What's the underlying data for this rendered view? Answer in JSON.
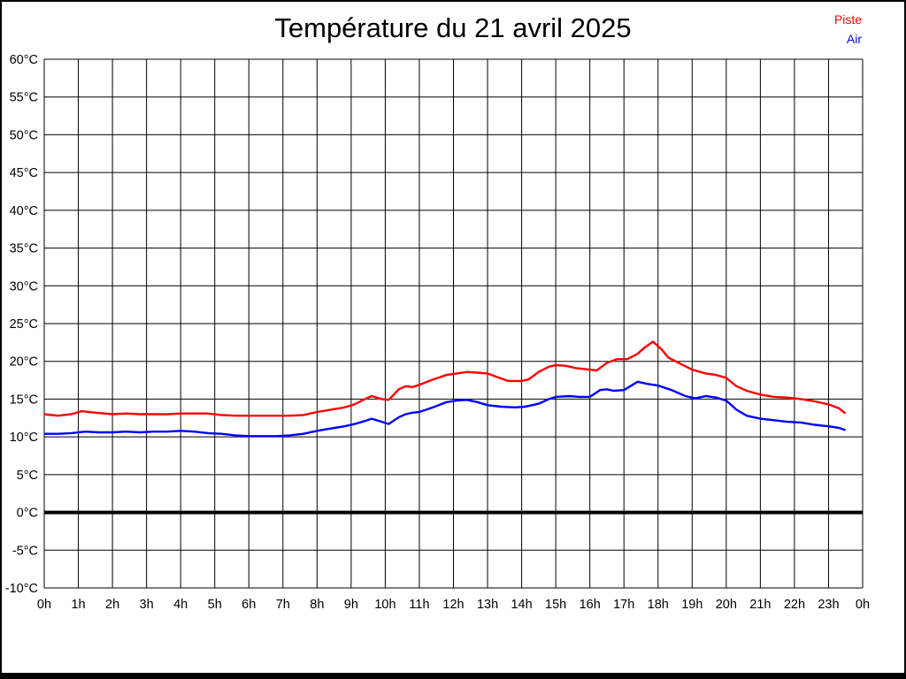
{
  "title": "Température du 21 avril 2025",
  "legend": {
    "piste": {
      "label": "Piste",
      "color": "#ff0000"
    },
    "air": {
      "label": "Air",
      "color": "#0000ff"
    }
  },
  "frame": {
    "background": "#ffffff",
    "border_color": "#000000"
  },
  "chart_data": {
    "type": "line",
    "title": "Température du 21 avril 2025",
    "grid": true,
    "grid_color": "#000000",
    "background": "#ffffff",
    "legend_position": "top-right",
    "zero_line_bold": true,
    "x_axis": {
      "unit": "h",
      "min": 0,
      "max": 24,
      "tick_values": [
        0,
        1,
        2,
        3,
        4,
        5,
        6,
        7,
        8,
        9,
        10,
        11,
        12,
        13,
        14,
        15,
        16,
        17,
        18,
        19,
        20,
        21,
        22,
        23,
        24
      ],
      "tick_labels": [
        "0h",
        "1h",
        "2h",
        "3h",
        "4h",
        "5h",
        "6h",
        "7h",
        "8h",
        "9h",
        "10h",
        "11h",
        "12h",
        "13h",
        "14h",
        "15h",
        "16h",
        "17h",
        "18h",
        "19h",
        "20h",
        "21h",
        "22h",
        "23h",
        "0h"
      ]
    },
    "y_axis": {
      "unit": "°C",
      "min": -10,
      "max": 60,
      "tick_values": [
        60,
        55,
        50,
        45,
        40,
        35,
        30,
        25,
        20,
        15,
        10,
        5,
        0,
        -5,
        -10
      ],
      "tick_labels": [
        "60°C",
        "55°C",
        "50°C",
        "45°C",
        "40°C",
        "35°C",
        "30°C",
        "25°C",
        "20°C",
        "15°C",
        "10°C",
        "5°C",
        "0°C",
        "-5°C",
        "-10°C"
      ]
    },
    "series": [
      {
        "name": "Piste",
        "color": "#ff0000",
        "points": [
          [
            0.0,
            13.0
          ],
          [
            0.4,
            12.8
          ],
          [
            0.8,
            13.0
          ],
          [
            1.1,
            13.4
          ],
          [
            1.5,
            13.2
          ],
          [
            2.0,
            13.0
          ],
          [
            2.4,
            13.1
          ],
          [
            2.8,
            13.0
          ],
          [
            3.2,
            13.0
          ],
          [
            3.6,
            13.0
          ],
          [
            4.0,
            13.1
          ],
          [
            4.4,
            13.1
          ],
          [
            4.8,
            13.1
          ],
          [
            5.2,
            12.9
          ],
          [
            5.6,
            12.8
          ],
          [
            6.0,
            12.8
          ],
          [
            6.4,
            12.8
          ],
          [
            6.8,
            12.8
          ],
          [
            7.2,
            12.8
          ],
          [
            7.6,
            12.9
          ],
          [
            8.0,
            13.3
          ],
          [
            8.4,
            13.6
          ],
          [
            8.8,
            13.9
          ],
          [
            9.1,
            14.3
          ],
          [
            9.4,
            15.0
          ],
          [
            9.6,
            15.4
          ],
          [
            9.9,
            15.0
          ],
          [
            10.1,
            14.9
          ],
          [
            10.4,
            16.3
          ],
          [
            10.6,
            16.7
          ],
          [
            10.8,
            16.6
          ],
          [
            11.0,
            16.9
          ],
          [
            11.4,
            17.6
          ],
          [
            11.8,
            18.2
          ],
          [
            12.1,
            18.4
          ],
          [
            12.4,
            18.6
          ],
          [
            12.7,
            18.5
          ],
          [
            13.0,
            18.4
          ],
          [
            13.3,
            17.9
          ],
          [
            13.6,
            17.4
          ],
          [
            14.0,
            17.4
          ],
          [
            14.2,
            17.6
          ],
          [
            14.5,
            18.6
          ],
          [
            14.8,
            19.3
          ],
          [
            15.0,
            19.5
          ],
          [
            15.3,
            19.4
          ],
          [
            15.6,
            19.1
          ],
          [
            16.0,
            18.9
          ],
          [
            16.2,
            18.8
          ],
          [
            16.5,
            19.8
          ],
          [
            16.8,
            20.3
          ],
          [
            17.1,
            20.3
          ],
          [
            17.4,
            21.0
          ],
          [
            17.6,
            21.8
          ],
          [
            17.85,
            22.6
          ],
          [
            18.1,
            21.6
          ],
          [
            18.3,
            20.5
          ],
          [
            18.6,
            19.8
          ],
          [
            19.0,
            18.9
          ],
          [
            19.4,
            18.4
          ],
          [
            19.7,
            18.2
          ],
          [
            20.0,
            17.8
          ],
          [
            20.3,
            16.7
          ],
          [
            20.6,
            16.1
          ],
          [
            21.0,
            15.6
          ],
          [
            21.4,
            15.3
          ],
          [
            21.8,
            15.2
          ],
          [
            22.2,
            15.0
          ],
          [
            22.6,
            14.7
          ],
          [
            23.0,
            14.3
          ],
          [
            23.3,
            13.8
          ],
          [
            23.5,
            13.1
          ]
        ]
      },
      {
        "name": "Air",
        "color": "#0000ff",
        "points": [
          [
            0.0,
            10.4
          ],
          [
            0.4,
            10.4
          ],
          [
            0.8,
            10.5
          ],
          [
            1.2,
            10.7
          ],
          [
            1.6,
            10.6
          ],
          [
            2.0,
            10.6
          ],
          [
            2.4,
            10.7
          ],
          [
            2.8,
            10.6
          ],
          [
            3.2,
            10.7
          ],
          [
            3.6,
            10.7
          ],
          [
            4.0,
            10.8
          ],
          [
            4.4,
            10.7
          ],
          [
            4.8,
            10.5
          ],
          [
            5.2,
            10.4
          ],
          [
            5.6,
            10.2
          ],
          [
            6.0,
            10.1
          ],
          [
            6.4,
            10.1
          ],
          [
            6.8,
            10.1
          ],
          [
            7.2,
            10.2
          ],
          [
            7.6,
            10.4
          ],
          [
            8.0,
            10.8
          ],
          [
            8.4,
            11.1
          ],
          [
            8.8,
            11.4
          ],
          [
            9.1,
            11.7
          ],
          [
            9.4,
            12.1
          ],
          [
            9.6,
            12.4
          ],
          [
            9.9,
            12.0
          ],
          [
            10.1,
            11.7
          ],
          [
            10.4,
            12.6
          ],
          [
            10.6,
            13.0
          ],
          [
            10.8,
            13.2
          ],
          [
            11.0,
            13.3
          ],
          [
            11.4,
            13.9
          ],
          [
            11.8,
            14.6
          ],
          [
            12.1,
            14.8
          ],
          [
            12.4,
            14.9
          ],
          [
            12.7,
            14.6
          ],
          [
            13.0,
            14.2
          ],
          [
            13.4,
            14.0
          ],
          [
            13.8,
            13.9
          ],
          [
            14.1,
            14.0
          ],
          [
            14.5,
            14.4
          ],
          [
            14.8,
            15.0
          ],
          [
            15.0,
            15.3
          ],
          [
            15.4,
            15.4
          ],
          [
            15.7,
            15.3
          ],
          [
            16.0,
            15.3
          ],
          [
            16.3,
            16.2
          ],
          [
            16.5,
            16.3
          ],
          [
            16.7,
            16.1
          ],
          [
            17.0,
            16.2
          ],
          [
            17.4,
            17.3
          ],
          [
            17.7,
            17.0
          ],
          [
            18.0,
            16.8
          ],
          [
            18.4,
            16.2
          ],
          [
            18.8,
            15.4
          ],
          [
            19.1,
            15.1
          ],
          [
            19.4,
            15.4
          ],
          [
            19.7,
            15.2
          ],
          [
            20.0,
            14.8
          ],
          [
            20.3,
            13.6
          ],
          [
            20.6,
            12.8
          ],
          [
            21.0,
            12.4
          ],
          [
            21.4,
            12.2
          ],
          [
            21.8,
            12.0
          ],
          [
            22.2,
            11.9
          ],
          [
            22.6,
            11.6
          ],
          [
            23.0,
            11.4
          ],
          [
            23.3,
            11.2
          ],
          [
            23.5,
            10.9
          ]
        ]
      }
    ]
  }
}
